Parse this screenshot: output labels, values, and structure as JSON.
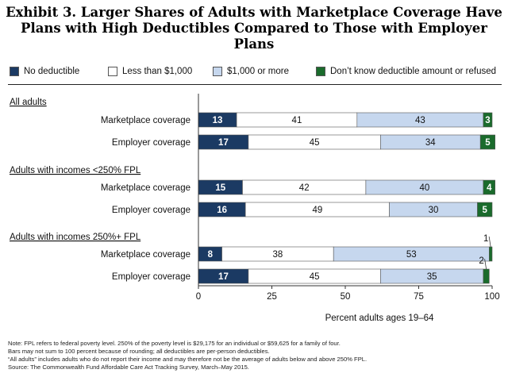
{
  "title_lines": [
    "Exhibit 3. Larger Shares of Adults with Marketplace Coverage Have",
    "Plans with High Deductibles Compared to Those with Employer Plans"
  ],
  "colors": {
    "no_deductible": "#1b3a63",
    "less_than_1000": "#ffffff",
    "over_1000": "#c6d7ee",
    "dont_know": "#1a6b2c"
  },
  "legend": [
    {
      "label": "No deductible",
      "color": "#1b3a63"
    },
    {
      "label": "Less than $1,000",
      "color": "#ffffff"
    },
    {
      "label": "$1,000 or more",
      "color": "#c6d7ee"
    },
    {
      "label": "Don’t know deductible amount or refused",
      "color": "#1a6b2c"
    }
  ],
  "chart_data": {
    "type": "bar",
    "orientation": "horizontal",
    "stacked": true,
    "xlabel": "Percent adults ages 19–64",
    "xlim": [
      0,
      100
    ],
    "xticks": [
      0,
      25,
      50,
      75,
      100
    ],
    "series_names": [
      "No deductible",
      "Less than $1,000",
      "$1,000 or more",
      "Don’t know deductible amount or refused"
    ],
    "groups": [
      {
        "label": "All adults",
        "rows": [
          {
            "label": "Marketplace coverage",
            "values": [
              13,
              41,
              43,
              3
            ]
          },
          {
            "label": "Employer coverage",
            "values": [
              17,
              45,
              34,
              5
            ]
          }
        ]
      },
      {
        "label": "Adults with incomes <250% FPL",
        "rows": [
          {
            "label": "Marketplace coverage",
            "values": [
              15,
              42,
              40,
              4
            ]
          },
          {
            "label": "Employer coverage",
            "values": [
              16,
              49,
              30,
              5
            ]
          }
        ]
      },
      {
        "label": "Adults with incomes 250%+ FPL",
        "rows": [
          {
            "label": "Marketplace coverage",
            "values": [
              8,
              38,
              53,
              1
            ]
          },
          {
            "label": "Employer coverage",
            "values": [
              17,
              45,
              35,
              2
            ]
          }
        ]
      }
    ]
  },
  "notes": [
    "Note: FPL refers to federal poverty level. 250% of the poverty level is $29,175 for an individual or $59,625 for a family of four.",
    "Bars may not sum to 100 percent because of rounding; all deductibles are per-person deductibles.",
    "“All adults” includes adults who do not report their income and may therefore not be the average of adults below and above 250% FPL.",
    "Source: The Commonwealth Fund Affordable Care Act Tracking Survey, March–May 2015."
  ]
}
